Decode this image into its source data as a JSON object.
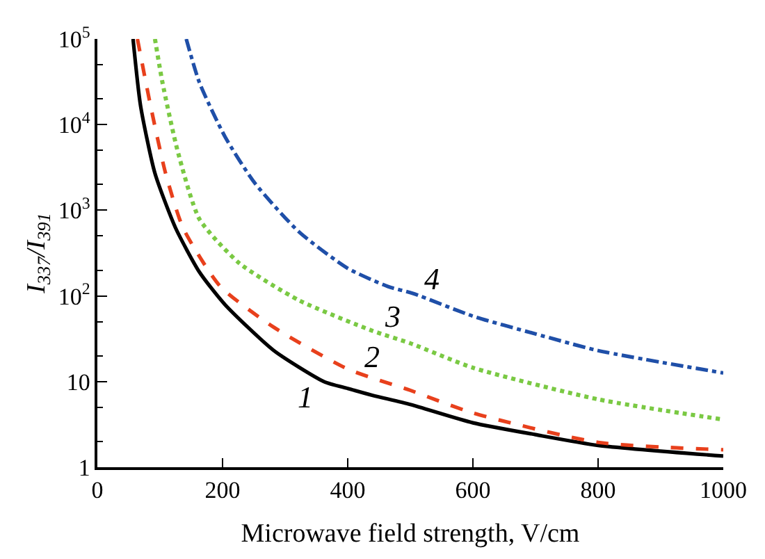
{
  "chart_data": {
    "type": "line",
    "xlabel": "Microwave field strength, V/cm",
    "ylabel": "I$_{337}$/I$_{391}$",
    "log": "y",
    "xlim": [
      0,
      1000
    ],
    "xticks": [
      0,
      200,
      400,
      600,
      800,
      1000
    ],
    "ylim": [
      1,
      100000
    ],
    "yticks": [
      1,
      10,
      {
        "value": 100,
        "label": "10$^{2}$"
      },
      {
        "value": 1000,
        "label": "10$^{3}$"
      },
      {
        "value": 10000,
        "label": "10$^{4}$"
      },
      {
        "value": 100000,
        "label": "10$^{5}$"
      }
    ],
    "legend": false,
    "marker": "none",
    "series": [
      {
        "name": "1",
        "color": "#000000",
        "line_style": "solid",
        "x": [
          57,
          69,
          92,
          125,
          163,
          204,
          282,
          362,
          400,
          440,
          500,
          600,
          700,
          800,
          1000
        ],
        "values": [
          100000,
          16600,
          2700,
          620,
          190,
          79,
          23,
          10,
          8.3,
          6.9,
          5.4,
          3.3,
          2.4,
          1.8,
          1.35
        ]
      },
      {
        "name": "2",
        "color": "#e8401c",
        "line_style": "dashed",
        "x": [
          64,
          85,
          109,
          137,
          196,
          282,
          400,
          500,
          600,
          800,
          1000
        ],
        "values": [
          100000,
          16600,
          2700,
          620,
          130,
          43,
          14,
          7.9,
          4.3,
          1.95,
          1.6
        ]
      },
      {
        "name": "3",
        "color": "#7ac943",
        "line_style": "dotted",
        "x": [
          92,
          104,
          128,
          163,
          227,
          322,
          440,
          500,
          600,
          800,
          1000
        ],
        "values": [
          100000,
          31000,
          5000,
          790,
          240,
          89,
          39,
          28,
          14.5,
          6.2,
          3.6
        ]
      },
      {
        "name": "4",
        "color": "#1f4fa8",
        "line_style": "dashdot",
        "x": [
          142,
          163,
          204,
          251,
          322,
          400,
          464,
          504,
          600,
          700,
          800,
          1000
        ],
        "values": [
          100000,
          31000,
          7200,
          2100,
          560,
          210,
          129,
          107,
          58,
          36,
          23,
          12.6
        ]
      }
    ]
  }
}
